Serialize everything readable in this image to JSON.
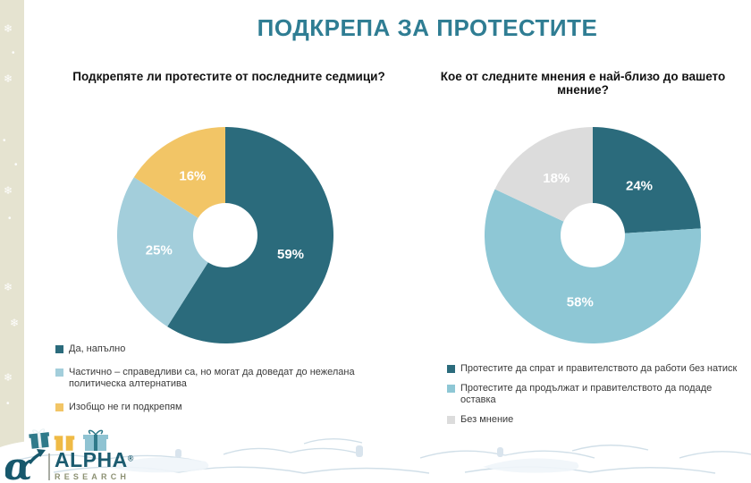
{
  "page": {
    "title": "ПОДКРЕПА ЗА ПРОТЕСТИТЕ"
  },
  "chart_data": [
    {
      "type": "pie",
      "donut": true,
      "title": "Подкрепяте ли протестите от последните седмици?",
      "labels": [
        "Да, напълно",
        "Частично – справедливи са, но могат да доведат до нежелана политическа алтернатива",
        "Изобщо не ги подкрепям"
      ],
      "values": [
        59,
        25,
        16
      ],
      "value_labels": [
        "59%",
        "25%",
        "16%"
      ],
      "colors": [
        "#2B6B7C",
        "#A3CEDB",
        "#F2C566"
      ],
      "label_color": "#FFFFFF",
      "legend_position": "bottom-left"
    },
    {
      "type": "pie",
      "donut": true,
      "title": "Кое от следните мнения е най-близо до вашето мнение?",
      "labels": [
        "Протестите да спрат и правителството да работи без натиск",
        "Протестите да продължат и правителството да подаде оставка",
        "Без мнение"
      ],
      "values": [
        24,
        58,
        18
      ],
      "value_labels": [
        "24%",
        "58%",
        "18%"
      ],
      "colors": [
        "#2B6B7C",
        "#8EC7D5",
        "#DCDCDC"
      ],
      "label_color": "#FFFFFF",
      "legend_position": "bottom-left"
    }
  ],
  "logo": {
    "name": "ALPHA",
    "registered_mark": "®",
    "subname": "RESEARCH"
  },
  "theme": {
    "title_color": "#2F7D93",
    "sidebar_color": "#E5E3D0",
    "dark_teal": "#2B6B7C",
    "light_blue": "#A3CEDB",
    "yellow": "#F2C566",
    "gray": "#DCDCDC"
  }
}
